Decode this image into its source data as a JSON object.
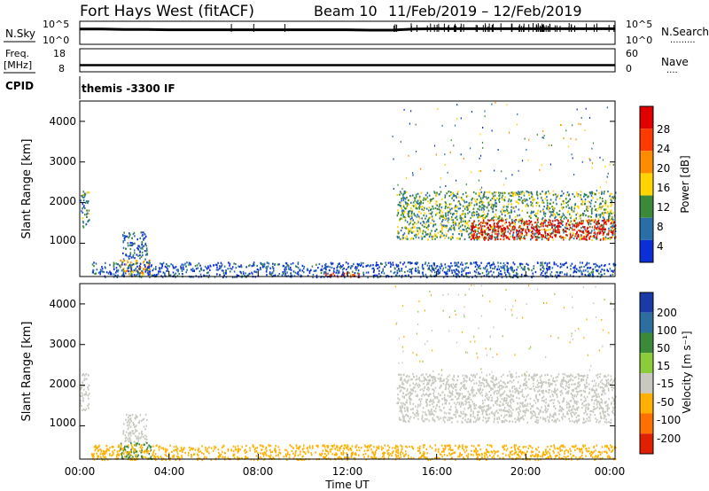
{
  "header": {
    "station": "Fort Hays West (fitACF)",
    "beam": "Beam 10",
    "date_range": "11/Feb/2019 – 12/Feb/2019"
  },
  "noise_panel": {
    "left_label": "N.Sky",
    "right_label": "N.Search",
    "right_dots": "·········",
    "left_ticks": [
      "10^5",
      "10^0"
    ],
    "right_ticks": [
      "10^5",
      "10^0"
    ]
  },
  "freq_panel": {
    "left_label_1": "Freq.",
    "left_label_2": "[MHz]",
    "right_label": "Nave",
    "right_dots": "····",
    "left_ticks": [
      "18",
      "8"
    ],
    "right_ticks": [
      "60",
      "0"
    ]
  },
  "cpid_panel": {
    "label": "CPID",
    "text": "themis  -3300 IF"
  },
  "x_axis": {
    "label": "Time UT",
    "ticks": [
      "00:00",
      "04:00",
      "08:00",
      "12:00",
      "16:00",
      "20:00",
      "00:00"
    ]
  },
  "power_panel": {
    "ylabel": "Slant Range [km]",
    "yticks": [
      "4000",
      "3000",
      "2000",
      "1000"
    ],
    "cbar_label": "Power [dB]",
    "cbar_ticks": [
      "28",
      "24",
      "20",
      "16",
      "12",
      "8",
      "4"
    ],
    "cbar_colors": [
      "#e00000",
      "#ff3a00",
      "#ff8c00",
      "#ffd400",
      "#3a8a3a",
      "#2a6ea8",
      "#0a2fd6"
    ]
  },
  "velocity_panel": {
    "ylabel": "Slant Range [km]",
    "yticks": [
      "4000",
      "3000",
      "2000",
      "1000"
    ],
    "cbar_label": "Velocity [m s⁻¹]",
    "cbar_ticks": [
      "200",
      "100",
      "50",
      "15",
      "-15",
      "-50",
      "-100",
      "-200"
    ],
    "cbar_colors": [
      "#1a3aa8",
      "#2e6e9e",
      "#3a8a3a",
      "#8acc3a",
      "#c8c8c0",
      "#ffb000",
      "#ff7000",
      "#e02000"
    ]
  },
  "chart_data": [
    {
      "type": "line",
      "title": "Fort Hays West (fitACF) Beam 10 11/Feb/2019 – 12/Feb/2019",
      "ylabel": "N.Sky",
      "xlabel": "",
      "x_range_hours": [
        0,
        24
      ],
      "series": [
        {
          "values_log10": [
            3.8,
            3.8,
            3.7,
            3.7,
            3.6,
            3.6,
            3.6,
            3.6,
            3.6,
            3.6,
            3.6,
            3.6,
            3.6,
            3.5,
            3.5,
            3.8,
            3.9,
            3.9,
            3.9,
            3.9,
            3.9,
            3.9,
            3.9,
            3.9,
            3.9
          ]
        }
      ]
    },
    {
      "type": "line",
      "ylabel": "Freq. [MHz]",
      "x_range_hours": [
        0,
        24
      ],
      "ylim": [
        8,
        18
      ],
      "series": [
        {
          "values": [
            10.5,
            10.5,
            10.5,
            10.5,
            10.5,
            10.5,
            10.5,
            10.5,
            10.5,
            10.5,
            10.5,
            10.5,
            10.5,
            10.5,
            10.5,
            10.5,
            10.5,
            10.5,
            10.5,
            10.5,
            10.5,
            10.5,
            10.5,
            10.5,
            10.5
          ]
        }
      ]
    },
    {
      "type": "heatmap",
      "ylabel": "Slant Range [km]",
      "xlabel": "Time UT",
      "x_range_hours": [
        0,
        24
      ],
      "ylim": [
        180,
        4500
      ],
      "colorbar": "Power [dB]",
      "regions": [
        {
          "t": [
            0.0,
            0.4
          ],
          "r": [
            1400,
            2300
          ],
          "power_db": 10
        },
        {
          "t": [
            1.9,
            3.0
          ],
          "r": [
            600,
            1300
          ],
          "power_db": 8
        },
        {
          "t": [
            1.8,
            3.2
          ],
          "r": [
            200,
            600
          ],
          "power_db": 18
        },
        {
          "t": [
            0.5,
            24.0
          ],
          "r": [
            180,
            550
          ],
          "power_db": 6
        },
        {
          "t": [
            11.0,
            12.5
          ],
          "r": [
            180,
            300
          ],
          "power_db": 24
        },
        {
          "t": [
            14.2,
            24.0
          ],
          "r": [
            1100,
            2300
          ],
          "power_db": 12
        },
        {
          "t": [
            17.5,
            24.0
          ],
          "r": [
            1100,
            1600
          ],
          "power_db": 28
        }
      ]
    },
    {
      "type": "heatmap",
      "ylabel": "Slant Range [km]",
      "xlabel": "Time UT",
      "x_range_hours": [
        0,
        24
      ],
      "ylim": [
        180,
        4500
      ],
      "colorbar": "Velocity [m s-1]",
      "regions": [
        {
          "t": [
            0.0,
            0.4
          ],
          "r": [
            1400,
            2300
          ],
          "velocity": 0
        },
        {
          "t": [
            1.9,
            3.0
          ],
          "r": [
            600,
            1300
          ],
          "velocity": 0
        },
        {
          "t": [
            1.8,
            3.2
          ],
          "r": [
            200,
            600
          ],
          "velocity": 40
        },
        {
          "t": [
            0.5,
            24.0
          ],
          "r": [
            180,
            550
          ],
          "velocity": -40
        },
        {
          "t": [
            14.2,
            24.0
          ],
          "r": [
            1100,
            2300
          ],
          "velocity": 0
        }
      ]
    }
  ]
}
